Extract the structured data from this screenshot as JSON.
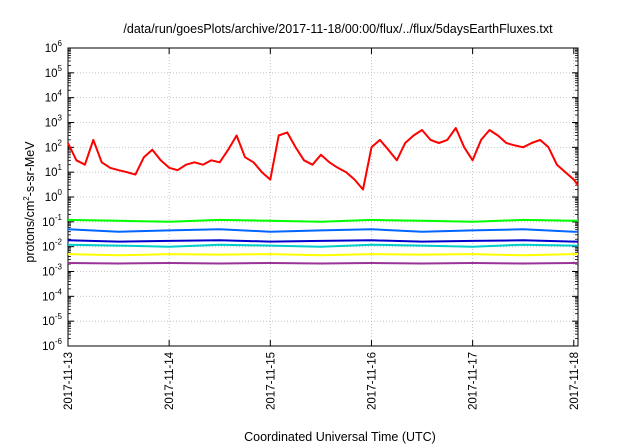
{
  "chart_data": {
    "type": "line",
    "title": "/data/run/goesPlots/archive/2017-11-18/00:00/flux/../flux/5daysEarthFluxes.txt",
    "xlabel": "Coordinated Universal Time (UTC)",
    "ylabel": "protons/cm2-s-sr-MeV",
    "yscale": "log",
    "ylim": [
      1e-06,
      1000000.0
    ],
    "xlim": [
      "2017-11-13",
      "2017-11-18 01:00"
    ],
    "grid": true,
    "x_ticks": [
      "2017-11-13",
      "2017-11-14",
      "2017-11-15",
      "2017-11-16",
      "2017-11-17",
      "2017-11-18"
    ],
    "y_ticks": [
      {
        "base": "10",
        "exp": "-6"
      },
      {
        "base": "10",
        "exp": "-5"
      },
      {
        "base": "10",
        "exp": "-4"
      },
      {
        "base": "10",
        "exp": "-3"
      },
      {
        "base": "10",
        "exp": "-2"
      },
      {
        "base": "10",
        "exp": "-1"
      },
      {
        "base": "10",
        "exp": "0"
      },
      {
        "base": "10",
        "exp": "1"
      },
      {
        "base": "10",
        "exp": "2"
      },
      {
        "base": "10",
        "exp": "3"
      },
      {
        "base": "10",
        "exp": "4"
      },
      {
        "base": "10",
        "exp": "5"
      },
      {
        "base": "10",
        "exp": "6"
      }
    ],
    "series": [
      {
        "color": "#ff0000",
        "x": [
          "2017-11-13 00:00",
          "2017-11-13 02:00",
          "2017-11-13 04:00",
          "2017-11-13 06:00",
          "2017-11-13 08:00",
          "2017-11-13 10:00",
          "2017-11-13 12:00",
          "2017-11-13 14:00",
          "2017-11-13 16:00",
          "2017-11-13 18:00",
          "2017-11-13 20:00",
          "2017-11-13 22:00",
          "2017-11-14 00:00",
          "2017-11-14 02:00",
          "2017-11-14 04:00",
          "2017-11-14 06:00",
          "2017-11-14 08:00",
          "2017-11-14 10:00",
          "2017-11-14 12:00",
          "2017-11-14 14:00",
          "2017-11-14 16:00",
          "2017-11-14 18:00",
          "2017-11-14 20:00",
          "2017-11-14 22:00",
          "2017-11-15 00:00",
          "2017-11-15 02:00",
          "2017-11-15 04:00",
          "2017-11-15 06:00",
          "2017-11-15 08:00",
          "2017-11-15 10:00",
          "2017-11-15 12:00",
          "2017-11-15 14:00",
          "2017-11-15 16:00",
          "2017-11-15 18:00",
          "2017-11-15 20:00",
          "2017-11-15 22:00",
          "2017-11-16 00:00",
          "2017-11-16 02:00",
          "2017-11-16 04:00",
          "2017-11-16 06:00",
          "2017-11-16 08:00",
          "2017-11-16 10:00",
          "2017-11-16 12:00",
          "2017-11-16 14:00",
          "2017-11-16 16:00",
          "2017-11-16 18:00",
          "2017-11-16 20:00",
          "2017-11-16 22:00",
          "2017-11-17 00:00",
          "2017-11-17 02:00",
          "2017-11-17 04:00",
          "2017-11-17 06:00",
          "2017-11-17 08:00",
          "2017-11-17 10:00",
          "2017-11-17 12:00",
          "2017-11-17 14:00",
          "2017-11-17 16:00",
          "2017-11-17 18:00",
          "2017-11-17 20:00",
          "2017-11-17 22:00",
          "2017-11-18 00:00",
          "2017-11-18 01:00"
        ],
        "values": [
          150,
          30,
          20,
          200,
          25,
          15,
          12,
          10,
          8,
          40,
          80,
          30,
          15,
          12,
          20,
          25,
          20,
          30,
          25,
          80,
          300,
          40,
          25,
          10,
          5,
          300,
          400,
          100,
          30,
          20,
          50,
          25,
          15,
          10,
          5,
          2,
          100,
          200,
          80,
          30,
          150,
          300,
          500,
          200,
          150,
          200,
          600,
          100,
          30,
          200,
          500,
          300,
          150,
          120,
          100,
          150,
          200,
          100,
          20,
          10,
          5,
          3
        ]
      },
      {
        "color": "#00ff00",
        "x": [
          "2017-11-13 00:00",
          "2017-11-13 12:00",
          "2017-11-14 00:00",
          "2017-11-14 12:00",
          "2017-11-15 00:00",
          "2017-11-15 12:00",
          "2017-11-16 00:00",
          "2017-11-16 12:00",
          "2017-11-17 00:00",
          "2017-11-17 12:00",
          "2017-11-18 00:00",
          "2017-11-18 01:00"
        ],
        "values": [
          0.12,
          0.11,
          0.1,
          0.12,
          0.11,
          0.1,
          0.12,
          0.11,
          0.1,
          0.12,
          0.11,
          0.11
        ]
      },
      {
        "color": "#0066ff",
        "x": [
          "2017-11-13 00:00",
          "2017-11-13 12:00",
          "2017-11-14 00:00",
          "2017-11-14 12:00",
          "2017-11-15 00:00",
          "2017-11-15 12:00",
          "2017-11-16 00:00",
          "2017-11-16 12:00",
          "2017-11-17 00:00",
          "2017-11-17 12:00",
          "2017-11-18 00:00",
          "2017-11-18 01:00"
        ],
        "values": [
          0.05,
          0.04,
          0.045,
          0.05,
          0.04,
          0.045,
          0.05,
          0.04,
          0.045,
          0.05,
          0.04,
          0.04
        ]
      },
      {
        "color": "#00cccc",
        "x": [
          "2017-11-13 00:00",
          "2017-11-13 12:00",
          "2017-11-14 00:00",
          "2017-11-14 12:00",
          "2017-11-15 00:00",
          "2017-11-15 12:00",
          "2017-11-16 00:00",
          "2017-11-16 12:00",
          "2017-11-17 00:00",
          "2017-11-17 12:00",
          "2017-11-18 00:00",
          "2017-11-18 01:00"
        ],
        "values": [
          0.012,
          0.011,
          0.01,
          0.012,
          0.011,
          0.01,
          0.012,
          0.011,
          0.01,
          0.012,
          0.011,
          0.011
        ]
      },
      {
        "color": "#0000cc",
        "x": [
          "2017-11-13 00:00",
          "2017-11-13 12:00",
          "2017-11-14 00:00",
          "2017-11-14 12:00",
          "2017-11-15 00:00",
          "2017-11-15 12:00",
          "2017-11-16 00:00",
          "2017-11-16 12:00",
          "2017-11-17 00:00",
          "2017-11-17 12:00",
          "2017-11-18 00:00",
          "2017-11-18 01:00"
        ],
        "values": [
          0.018,
          0.016,
          0.017,
          0.018,
          0.016,
          0.017,
          0.018,
          0.016,
          0.017,
          0.018,
          0.016,
          0.016
        ]
      },
      {
        "color": "#ffff00",
        "x": [
          "2017-11-13 00:00",
          "2017-11-13 12:00",
          "2017-11-14 00:00",
          "2017-11-14 12:00",
          "2017-11-15 00:00",
          "2017-11-15 12:00",
          "2017-11-16 00:00",
          "2017-11-16 12:00",
          "2017-11-17 00:00",
          "2017-11-17 12:00",
          "2017-11-18 00:00",
          "2017-11-18 01:00"
        ],
        "values": [
          0.005,
          0.0045,
          0.005,
          0.0048,
          0.005,
          0.0045,
          0.005,
          0.0048,
          0.005,
          0.0045,
          0.005,
          0.005
        ]
      },
      {
        "color": "#993399",
        "x": [
          "2017-11-13 00:00",
          "2017-11-13 12:00",
          "2017-11-14 00:00",
          "2017-11-14 12:00",
          "2017-11-15 00:00",
          "2017-11-15 12:00",
          "2017-11-16 00:00",
          "2017-11-16 12:00",
          "2017-11-17 00:00",
          "2017-11-17 12:00",
          "2017-11-18 00:00",
          "2017-11-18 01:00"
        ],
        "values": [
          0.0022,
          0.0021,
          0.0022,
          0.0021,
          0.0022,
          0.0021,
          0.0022,
          0.0021,
          0.0022,
          0.0021,
          0.0022,
          0.0022
        ]
      }
    ]
  }
}
